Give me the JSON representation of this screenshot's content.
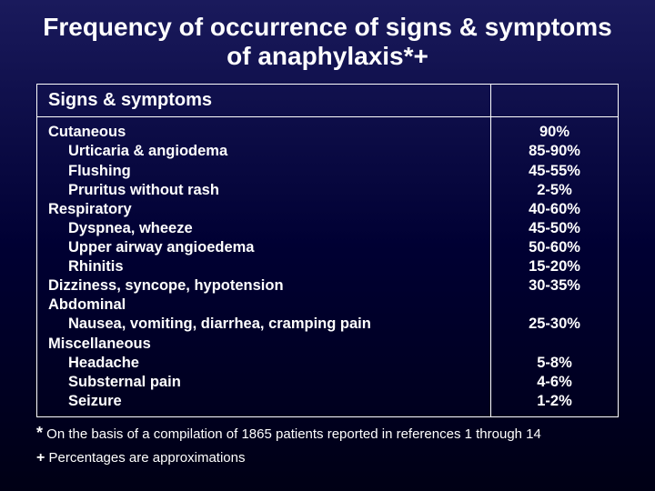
{
  "title_fontsize": 28,
  "body_fontsize": 16.5,
  "header_fontsize": 20,
  "footnote_fontsize": 15,
  "background_gradient": [
    "#1a1a5c",
    "#000033",
    "#000015"
  ],
  "text_color": "#ffffff",
  "border_color": "#ffffff",
  "title": "Frequency of occurrence of signs & symptoms of anaphylaxis*+",
  "table": {
    "header_signs": "Signs & symptoms",
    "header_freq": "",
    "rows": [
      {
        "label": "Cutaneous",
        "indent": 0,
        "freq": "90%"
      },
      {
        "label": "Urticaria & angiodema",
        "indent": 1,
        "freq": "85-90%"
      },
      {
        "label": "Flushing",
        "indent": 1,
        "freq": "45-55%"
      },
      {
        "label": "Pruritus without rash",
        "indent": 1,
        "freq": "2-5%"
      },
      {
        "label": "Respiratory",
        "indent": 0,
        "freq": "40-60%"
      },
      {
        "label": "Dyspnea, wheeze",
        "indent": 1,
        "freq": "45-50%"
      },
      {
        "label": "Upper airway angioedema",
        "indent": 1,
        "freq": "50-60%"
      },
      {
        "label": "Rhinitis",
        "indent": 1,
        "freq": "15-20%"
      },
      {
        "label": "Dizziness, syncope, hypotension",
        "indent": 0,
        "freq": "30-35%"
      },
      {
        "label": "Abdominal",
        "indent": 0,
        "freq": ""
      },
      {
        "label": "Nausea, vomiting, diarrhea, cramping pain",
        "indent": 1,
        "freq": "25-30%"
      },
      {
        "label": "Miscellaneous",
        "indent": 0,
        "freq": ""
      },
      {
        "label": "Headache",
        "indent": 1,
        "freq": "5-8%"
      },
      {
        "label": "Substernal pain",
        "indent": 1,
        "freq": "4-6%"
      },
      {
        "label": "Seizure",
        "indent": 1,
        "freq": "1-2%"
      }
    ]
  },
  "footnotes": {
    "star_symbol": "*",
    "star_text": " On the basis of a compilation of 1865 patients reported in references 1 through 14",
    "plus_symbol": "+",
    "plus_text": " Percentages are approximations"
  }
}
